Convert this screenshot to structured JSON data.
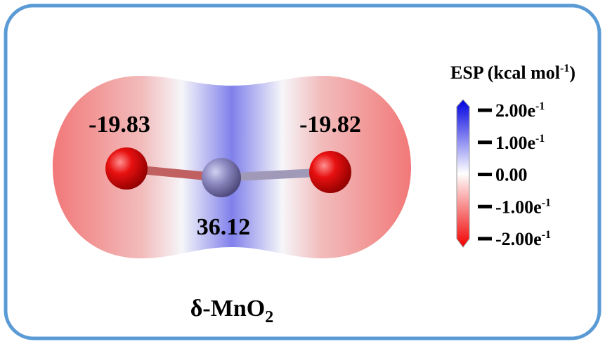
{
  "colorbar": {
    "title": {
      "text": "ESP (kcal mol",
      "sup": "-1",
      "end": ")"
    },
    "ticks": [
      {
        "text": "2.00e",
        "sup": "-1"
      },
      {
        "text": "1.00e",
        "sup": "-1"
      },
      {
        "text": "0.00"
      },
      {
        "text": "-1.00e",
        "sup": "-1"
      },
      {
        "text": "-2.00e",
        "sup": "-1"
      }
    ]
  },
  "molecule": {
    "site_values": [
      "-19.83",
      "36.12",
      "-19.82"
    ],
    "label": {
      "text": "δ-MnO",
      "sub": "2"
    }
  }
}
